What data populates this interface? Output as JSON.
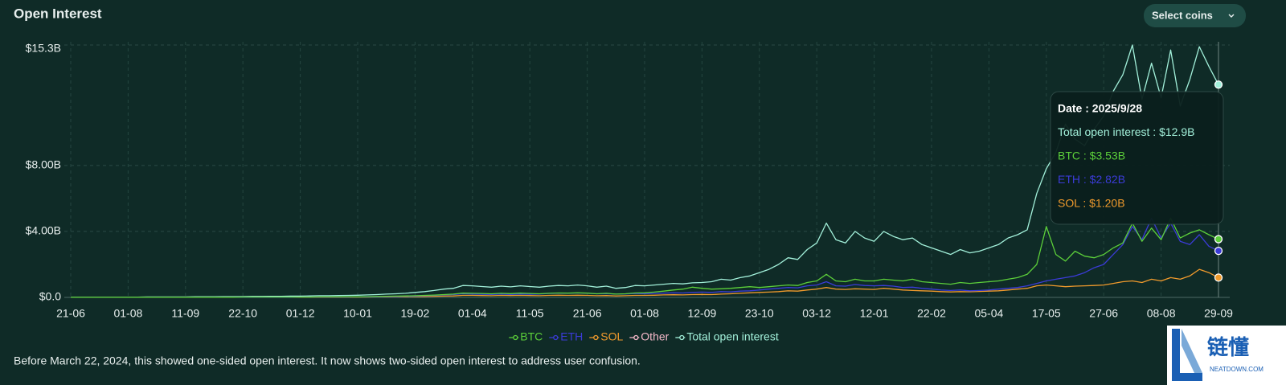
{
  "chart_data": {
    "type": "line",
    "title": "Open Interest",
    "note": "Before March 22, 2024, this showed one-sided open interest. It now shows two-sided open interest to address user confusion.",
    "categories": [
      "21-06",
      null,
      null,
      null,
      null,
      null,
      "01-08",
      null,
      null,
      null,
      null,
      null,
      "11-09",
      null,
      null,
      null,
      null,
      null,
      "22-10",
      null,
      null,
      null,
      null,
      null,
      "01-12",
      null,
      null,
      null,
      null,
      null,
      "10-01",
      null,
      null,
      null,
      null,
      null,
      "19-02",
      null,
      null,
      null,
      null,
      null,
      "01-04",
      null,
      null,
      null,
      null,
      null,
      "11-05",
      null,
      null,
      null,
      null,
      null,
      "21-06",
      null,
      null,
      null,
      null,
      null,
      "01-08",
      null,
      null,
      null,
      null,
      null,
      "12-09",
      null,
      null,
      null,
      null,
      null,
      "23-10",
      null,
      null,
      null,
      null,
      null,
      "03-12",
      null,
      null,
      null,
      null,
      null,
      "12-01",
      null,
      null,
      null,
      null,
      null,
      "22-02",
      null,
      null,
      null,
      null,
      null,
      "05-04",
      null,
      null,
      null,
      null,
      null,
      "17-05",
      null,
      null,
      null,
      null,
      null,
      "27-06",
      null,
      null,
      null,
      null,
      null,
      "08-08",
      null,
      null,
      null,
      null,
      null,
      "29-09"
    ],
    "ylim": [
      0,
      15.3
    ],
    "yticks": [
      {
        "value": 0,
        "label": "$0.0"
      },
      {
        "value": 4,
        "label": "$4.00B"
      },
      {
        "value": 8,
        "label": "$8.00B"
      },
      {
        "value": 15.3,
        "label": "$15.3B"
      }
    ],
    "grid": true,
    "legend": "bottom",
    "series": [
      {
        "name": "BTC",
        "color": "#5ccf3a",
        "values": [
          0.01,
          0.01,
          0.01,
          0.01,
          0.01,
          0.01,
          0.01,
          0.01,
          0.01,
          0.01,
          0.01,
          0.01,
          0.01,
          0.01,
          0.01,
          0.01,
          0.01,
          0.01,
          0.02,
          0.02,
          0.02,
          0.02,
          0.02,
          0.02,
          0.02,
          0.02,
          0.03,
          0.03,
          0.03,
          0.04,
          0.04,
          0.05,
          0.06,
          0.07,
          0.08,
          0.09,
          0.1,
          0.12,
          0.14,
          0.17,
          0.2,
          0.26,
          0.25,
          0.24,
          0.22,
          0.25,
          0.23,
          0.26,
          0.24,
          0.22,
          0.25,
          0.27,
          0.26,
          0.28,
          0.26,
          0.22,
          0.25,
          0.2,
          0.22,
          0.27,
          0.28,
          0.32,
          0.38,
          0.45,
          0.5,
          0.62,
          0.55,
          0.5,
          0.52,
          0.55,
          0.6,
          0.65,
          0.6,
          0.65,
          0.7,
          0.75,
          0.72,
          0.9,
          1.0,
          1.4,
          1.0,
          0.95,
          1.1,
          1.0,
          1.0,
          1.1,
          1.05,
          1.0,
          1.1,
          0.95,
          0.9,
          0.85,
          0.8,
          0.9,
          0.85,
          0.9,
          0.95,
          1.0,
          1.1,
          1.2,
          1.4,
          2.0,
          4.3,
          2.6,
          2.2,
          2.8,
          2.5,
          2.4,
          2.6,
          3.0,
          3.3,
          4.5,
          3.4,
          4.2,
          3.5,
          4.8,
          3.6,
          3.9,
          4.1,
          3.8,
          3.53
        ]
      },
      {
        "name": "ETH",
        "color": "#3b3bd6",
        "values": [
          0.01,
          0.01,
          0.01,
          0.01,
          0.01,
          0.01,
          0.01,
          0.01,
          0.01,
          0.01,
          0.01,
          0.01,
          0.01,
          0.01,
          0.01,
          0.01,
          0.01,
          0.01,
          0.01,
          0.01,
          0.01,
          0.01,
          0.01,
          0.01,
          0.02,
          0.02,
          0.02,
          0.02,
          0.02,
          0.02,
          0.03,
          0.03,
          0.04,
          0.05,
          0.06,
          0.07,
          0.08,
          0.1,
          0.12,
          0.15,
          0.17,
          0.22,
          0.2,
          0.19,
          0.18,
          0.2,
          0.18,
          0.2,
          0.19,
          0.2,
          0.24,
          0.26,
          0.25,
          0.27,
          0.25,
          0.22,
          0.23,
          0.2,
          0.21,
          0.24,
          0.22,
          0.24,
          0.26,
          0.28,
          0.27,
          0.3,
          0.32,
          0.3,
          0.35,
          0.33,
          0.38,
          0.4,
          0.45,
          0.5,
          0.55,
          0.6,
          0.58,
          0.7,
          0.75,
          0.95,
          0.7,
          0.68,
          0.78,
          0.72,
          0.7,
          0.72,
          0.68,
          0.6,
          0.62,
          0.55,
          0.5,
          0.45,
          0.42,
          0.45,
          0.4,
          0.42,
          0.45,
          0.5,
          0.55,
          0.6,
          0.7,
          0.85,
          1.0,
          1.1,
          1.2,
          1.3,
          1.5,
          1.8,
          2.0,
          2.6,
          3.2,
          4.3,
          3.5,
          4.8,
          3.6,
          4.5,
          3.4,
          3.2,
          3.8,
          3.1,
          2.82
        ]
      },
      {
        "name": "SOL",
        "color": "#f09a2c",
        "values": [
          0.01,
          0.01,
          0.01,
          0.01,
          0.01,
          0.01,
          0.01,
          0.01,
          0.01,
          0.01,
          0.01,
          0.01,
          0.01,
          0.01,
          0.01,
          0.01,
          0.01,
          0.01,
          0.01,
          0.01,
          0.01,
          0.01,
          0.01,
          0.01,
          0.01,
          0.01,
          0.01,
          0.01,
          0.01,
          0.01,
          0.02,
          0.02,
          0.03,
          0.03,
          0.04,
          0.04,
          0.05,
          0.06,
          0.07,
          0.08,
          0.09,
          0.12,
          0.12,
          0.11,
          0.1,
          0.12,
          0.11,
          0.12,
          0.11,
          0.1,
          0.12,
          0.13,
          0.12,
          0.13,
          0.12,
          0.1,
          0.11,
          0.09,
          0.1,
          0.12,
          0.12,
          0.13,
          0.15,
          0.16,
          0.15,
          0.17,
          0.18,
          0.17,
          0.2,
          0.22,
          0.25,
          0.28,
          0.3,
          0.32,
          0.35,
          0.4,
          0.38,
          0.45,
          0.5,
          0.6,
          0.5,
          0.48,
          0.52,
          0.5,
          0.48,
          0.55,
          0.5,
          0.45,
          0.42,
          0.4,
          0.38,
          0.35,
          0.33,
          0.35,
          0.34,
          0.36,
          0.38,
          0.4,
          0.45,
          0.5,
          0.55,
          0.7,
          0.75,
          0.7,
          0.65,
          0.68,
          0.7,
          0.72,
          0.75,
          0.85,
          0.95,
          1.0,
          0.9,
          1.1,
          1.0,
          1.2,
          1.1,
          1.3,
          1.7,
          1.5,
          1.2
        ]
      },
      {
        "name": "Other",
        "color": "#f3b8c8",
        "values": [
          null,
          null,
          null,
          null,
          null,
          null,
          null,
          null,
          null,
          null,
          null,
          null,
          null,
          null,
          null,
          null,
          null,
          null,
          null,
          null,
          null,
          null,
          null,
          null,
          null,
          null,
          null,
          null,
          null,
          null,
          null,
          null,
          null,
          null,
          null,
          null,
          null,
          null,
          null,
          null,
          null,
          null,
          null,
          null,
          null,
          null,
          null,
          null,
          null,
          null,
          null,
          null,
          null,
          null,
          null,
          null,
          null,
          null,
          null,
          null,
          null,
          null,
          null,
          null,
          null,
          null,
          null,
          null,
          null,
          null,
          null,
          null,
          null,
          null,
          null,
          null,
          null,
          null,
          null,
          null,
          null,
          null,
          null,
          null,
          null,
          null,
          null,
          null,
          null,
          null,
          null,
          null,
          null,
          null,
          null,
          null,
          null,
          null,
          null,
          null,
          null,
          null,
          null,
          null,
          null,
          null,
          null,
          null,
          null,
          null,
          null,
          null,
          null,
          null,
          null,
          null,
          null,
          null,
          null,
          null,
          null
        ]
      },
      {
        "name": "Total open interest",
        "color": "#a2f0da",
        "values": [
          0.01,
          0.01,
          0.01,
          0.02,
          0.02,
          0.02,
          0.02,
          0.02,
          0.03,
          0.03,
          0.03,
          0.03,
          0.03,
          0.04,
          0.04,
          0.04,
          0.05,
          0.05,
          0.05,
          0.06,
          0.06,
          0.07,
          0.07,
          0.08,
          0.08,
          0.09,
          0.1,
          0.1,
          0.11,
          0.12,
          0.13,
          0.15,
          0.17,
          0.2,
          0.22,
          0.25,
          0.3,
          0.35,
          0.42,
          0.5,
          0.55,
          0.72,
          0.7,
          0.66,
          0.62,
          0.68,
          0.64,
          0.7,
          0.66,
          0.62,
          0.68,
          0.72,
          0.7,
          0.75,
          0.7,
          0.62,
          0.68,
          0.55,
          0.6,
          0.72,
          0.7,
          0.75,
          0.8,
          0.85,
          0.82,
          0.88,
          0.9,
          0.95,
          1.1,
          1.05,
          1.2,
          1.3,
          1.5,
          1.7,
          2.0,
          2.4,
          2.3,
          2.9,
          3.3,
          4.5,
          3.5,
          3.3,
          4.0,
          3.6,
          3.4,
          4.0,
          3.7,
          3.5,
          3.6,
          3.2,
          3.0,
          2.8,
          2.6,
          2.9,
          2.7,
          2.8,
          3.0,
          3.2,
          3.6,
          3.8,
          4.1,
          6.3,
          7.8,
          8.8,
          10.5,
          9.6,
          9.2,
          10.2,
          11.0,
          12.5,
          13.5,
          15.3,
          12.0,
          14.2,
          12.1,
          15.0,
          11.6,
          13.2,
          15.2,
          14.0,
          12.9
        ]
      }
    ],
    "tooltip": [
      {
        "text": "Date : 2025/9/28",
        "color": "#ffffff"
      },
      {
        "text": "Total open interest : $12.9B",
        "color": "#a2f0da"
      },
      {
        "text": "BTC : $3.53B",
        "color": "#5ccf3a"
      },
      {
        "text": "ETH : $2.82B",
        "color": "#3b3bd6"
      },
      {
        "text": "SOL : $1.20B",
        "color": "#f09a2c"
      }
    ]
  },
  "controls": {
    "select_coins": "Select coins"
  },
  "watermark": {
    "name": "链懂",
    "site": "NEATDOWN.COM"
  }
}
